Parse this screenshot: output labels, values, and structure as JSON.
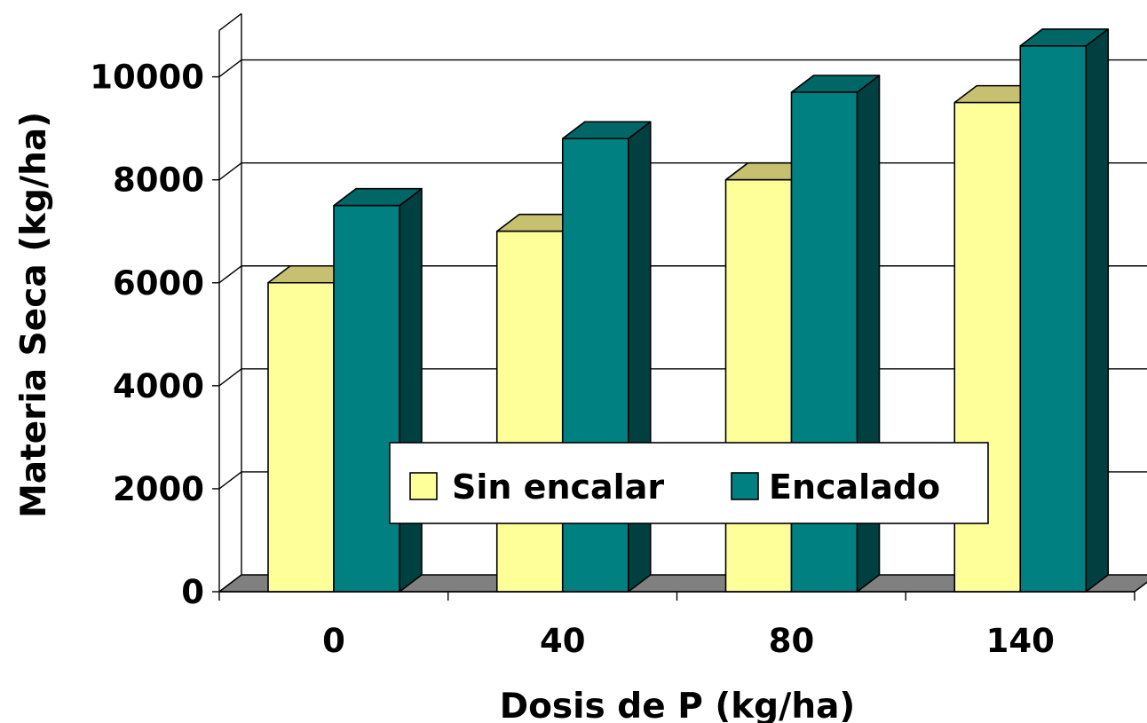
{
  "chart_data": {
    "type": "bar",
    "style": "3d-clustered",
    "categories": [
      "0",
      "40",
      "80",
      "140"
    ],
    "series": [
      {
        "name": "Sin encalar",
        "values": [
          6000,
          7000,
          8000,
          9500
        ],
        "color": "#ffff99",
        "top_color": "#c6c070"
      },
      {
        "name": "Encalado",
        "values": [
          7500,
          8800,
          9700,
          10600
        ],
        "color": "#008080",
        "top_color": "#006666",
        "side_color": "#004040"
      }
    ],
    "xlabel": "Dosis de P (kg/ha)",
    "ylabel": "Materia Seca (kg/ha)",
    "ylim": [
      0,
      10000
    ],
    "yticks": [
      "0",
      "2000",
      "4000",
      "6000",
      "8000",
      "10000"
    ],
    "grid": true,
    "legend_position": "bottom-center-inside",
    "floor_color": "#808080"
  }
}
